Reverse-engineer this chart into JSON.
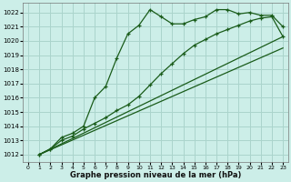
{
  "xlabel": "Graphe pression niveau de la mer (hPa)",
  "bg_color": "#cceee8",
  "grid_color": "#aad4cc",
  "line_color": "#1a5c1a",
  "ylim": [
    1011.5,
    1022.7
  ],
  "xlim": [
    -0.5,
    23.5
  ],
  "yticks": [
    1012,
    1013,
    1014,
    1015,
    1016,
    1017,
    1018,
    1019,
    1020,
    1021,
    1022
  ],
  "xticks": [
    0,
    1,
    2,
    3,
    4,
    5,
    6,
    7,
    8,
    9,
    10,
    11,
    12,
    13,
    14,
    15,
    16,
    17,
    18,
    19,
    20,
    21,
    22,
    23
  ],
  "series1_x": [
    1,
    2,
    3,
    4,
    5,
    6,
    7,
    8,
    9,
    10,
    11,
    12,
    13,
    14,
    15,
    16,
    17,
    18,
    19,
    20,
    21,
    22,
    23
  ],
  "series1_y": [
    1012.0,
    1012.4,
    1013.2,
    1013.5,
    1014.0,
    1016.0,
    1016.8,
    1018.8,
    1020.5,
    1021.1,
    1022.2,
    1021.7,
    1021.2,
    1021.2,
    1021.5,
    1021.7,
    1022.2,
    1022.2,
    1021.9,
    1022.0,
    1021.8,
    1021.8,
    1021.0
  ],
  "series2_x": [
    1,
    2,
    3,
    4,
    5,
    6,
    7,
    8,
    9,
    10,
    11,
    12,
    13,
    14,
    15,
    16,
    17,
    18,
    19,
    20,
    21,
    22,
    23
  ],
  "series2_y": [
    1012.0,
    1012.4,
    1013.0,
    1013.3,
    1013.8,
    1014.2,
    1014.6,
    1015.1,
    1015.5,
    1016.1,
    1016.9,
    1017.7,
    1018.4,
    1019.1,
    1019.7,
    1020.1,
    1020.5,
    1020.8,
    1021.1,
    1021.4,
    1021.6,
    1021.7,
    1020.3
  ],
  "series3_x": [
    1,
    23
  ],
  "series3_y": [
    1012.0,
    1019.5
  ],
  "series4_x": [
    1,
    23
  ],
  "series4_y": [
    1012.0,
    1020.3
  ]
}
